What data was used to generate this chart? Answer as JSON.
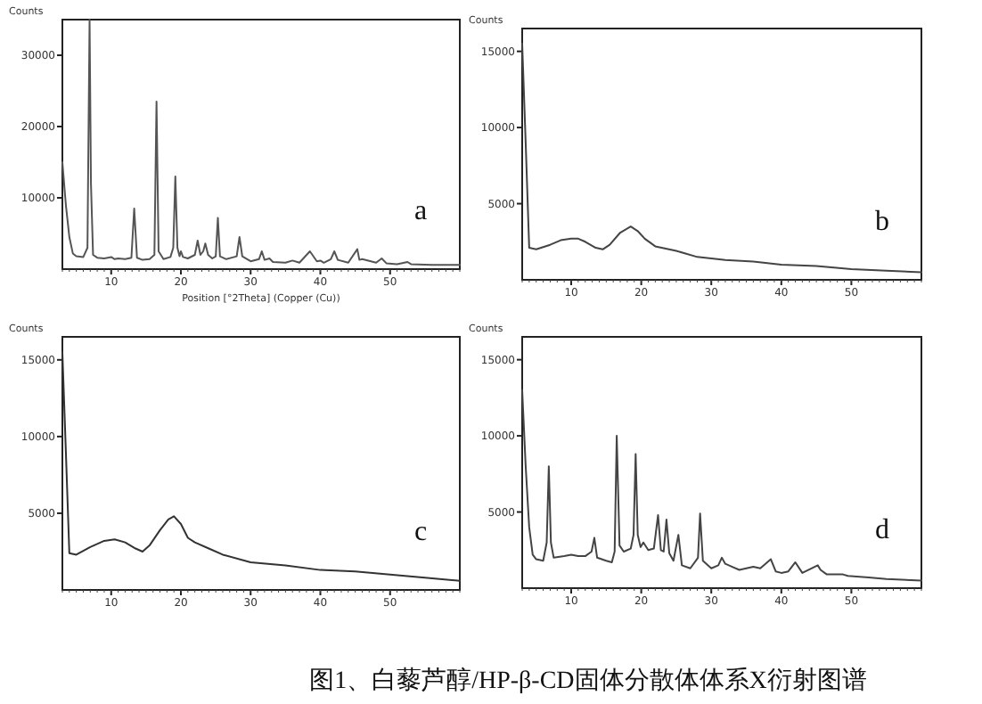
{
  "chart_data": [
    {
      "type": "line",
      "ylabel": "Counts",
      "xlabel": "Position [°2Theta] (Copper (Cu))",
      "xlim": [
        3,
        60
      ],
      "ylim": [
        0,
        35000
      ],
      "xticks": [
        10,
        20,
        30,
        40,
        50
      ],
      "yticks": [
        10000,
        20000,
        30000
      ],
      "grid": false,
      "marker": "none",
      "line_style": "solid",
      "annotations": [
        "a"
      ],
      "series": [
        {
          "color": "#555555",
          "x": [
            3,
            3.5,
            4,
            4.5,
            5,
            6,
            6.6,
            6.9,
            7.1,
            7.4,
            8,
            9,
            10,
            10.5,
            11,
            12,
            12.9,
            13.3,
            13.7,
            14.5,
            15.5,
            16.2,
            16.5,
            16.8,
            17.5,
            18.5,
            18.9,
            19.2,
            19.5,
            19.8,
            20,
            20.3,
            21,
            22,
            22.4,
            22.8,
            23.2,
            23.5,
            23.9,
            24.5,
            25,
            25.3,
            25.6,
            26.5,
            28,
            28.4,
            28.8,
            30,
            31.2,
            31.6,
            32,
            32.7,
            33.2,
            35,
            36,
            37,
            38.5,
            39.5,
            40,
            40.5,
            41.5,
            42,
            42.5,
            44,
            45.3,
            45.6,
            46,
            48,
            48.8,
            49.5,
            51,
            52.5,
            53,
            56,
            60
          ],
          "values": [
            15000,
            9000,
            4500,
            2200,
            1800,
            1700,
            3000,
            35000,
            12000,
            2000,
            1600,
            1500,
            1700,
            1400,
            1500,
            1400,
            1600,
            8500,
            1600,
            1300,
            1400,
            2000,
            23500,
            2500,
            1400,
            1700,
            3000,
            13000,
            3000,
            1800,
            2500,
            1700,
            1500,
            2000,
            4000,
            2000,
            2500,
            3600,
            2000,
            1500,
            1800,
            7200,
            1800,
            1400,
            1800,
            4500,
            1800,
            1100,
            1400,
            2500,
            1300,
            1500,
            1000,
            900,
            1200,
            900,
            2500,
            1100,
            1200,
            900,
            1400,
            2500,
            1300,
            900,
            2800,
            1300,
            1400,
            900,
            1500,
            800,
            700,
            1000,
            700,
            600,
            600
          ]
        }
      ]
    },
    {
      "type": "line",
      "ylabel": "Counts",
      "xlim": [
        3,
        60
      ],
      "ylim": [
        0,
        16500
      ],
      "xticks": [
        10,
        20,
        30,
        40,
        50
      ],
      "yticks": [
        5000,
        10000,
        15000
      ],
      "grid": false,
      "marker": "none",
      "line_style": "solid",
      "annotations": [
        "b"
      ],
      "series": [
        {
          "color": "#444444",
          "x": [
            3,
            3.5,
            4,
            5,
            7,
            8.5,
            10,
            11,
            12,
            13.5,
            14.5,
            15.5,
            17,
            18.5,
            19.5,
            20.5,
            22,
            25,
            28,
            32,
            36,
            40,
            45,
            50,
            55,
            60
          ],
          "values": [
            15500,
            9000,
            2100,
            2000,
            2300,
            2600,
            2700,
            2700,
            2500,
            2100,
            2000,
            2300,
            3100,
            3500,
            3200,
            2700,
            2200,
            1900,
            1500,
            1300,
            1200,
            1000,
            900,
            700,
            600,
            500
          ]
        }
      ]
    },
    {
      "type": "line",
      "ylabel": "Counts",
      "xlim": [
        3,
        60
      ],
      "ylim": [
        0,
        16500
      ],
      "xticks": [
        10,
        20,
        30,
        40,
        50
      ],
      "yticks": [
        5000,
        10000,
        15000
      ],
      "grid": false,
      "marker": "none",
      "line_style": "solid",
      "annotations": [
        "c"
      ],
      "series": [
        {
          "color": "#333333",
          "x": [
            3,
            3.5,
            4,
            5,
            7,
            9,
            10.5,
            12,
            13.5,
            14.5,
            15.5,
            17,
            18.2,
            19,
            20,
            21,
            22,
            24,
            26,
            30,
            35,
            40,
            45,
            50,
            55,
            60
          ],
          "values": [
            15500,
            9000,
            2400,
            2300,
            2800,
            3200,
            3300,
            3100,
            2700,
            2500,
            2900,
            3900,
            4600,
            4800,
            4300,
            3400,
            3100,
            2700,
            2300,
            1800,
            1600,
            1300,
            1200,
            1000,
            800,
            600
          ]
        }
      ]
    },
    {
      "type": "line",
      "ylabel": "Counts",
      "xlim": [
        3,
        60
      ],
      "ylim": [
        0,
        16500
      ],
      "xticks": [
        10,
        20,
        30,
        40,
        50
      ],
      "yticks": [
        5000,
        10000,
        15000
      ],
      "grid": false,
      "marker": "none",
      "line_style": "solid",
      "annotations": [
        "d",
        "图1、白藜芦醇/HP-β-CD固体分散体体系X衍射图谱"
      ],
      "series": [
        {
          "color": "#444444",
          "x": [
            3,
            3.5,
            4,
            4.5,
            5,
            6,
            6.5,
            6.8,
            7.1,
            7.5,
            9,
            10,
            11,
            12,
            12.9,
            13.3,
            13.7,
            15,
            15.8,
            16.2,
            16.5,
            16.9,
            17.5,
            18.5,
            18.9,
            19.2,
            19.5,
            19.9,
            20.3,
            21,
            21.8,
            22.4,
            22.8,
            23.2,
            23.6,
            24,
            24.6,
            25.3,
            25.8,
            27,
            28.1,
            28.4,
            28.8,
            30,
            31,
            31.5,
            32,
            33,
            34,
            36,
            37,
            38.5,
            39.2,
            40,
            41,
            42,
            43,
            45.2,
            45.6,
            46.5,
            48.8,
            49.5,
            52.5,
            55,
            60
          ],
          "values": [
            13000,
            8000,
            4000,
            2200,
            1900,
            1800,
            3000,
            8000,
            3000,
            2000,
            2100,
            2200,
            2100,
            2100,
            2400,
            3300,
            2000,
            1800,
            1700,
            2400,
            10000,
            2800,
            2400,
            2600,
            3500,
            8800,
            3500,
            2700,
            3000,
            2500,
            2600,
            4800,
            2500,
            2400,
            4500,
            2300,
            1800,
            3500,
            1500,
            1300,
            2000,
            4900,
            1800,
            1300,
            1500,
            2000,
            1600,
            1400,
            1200,
            1400,
            1300,
            1900,
            1100,
            1000,
            1100,
            1700,
            1000,
            1500,
            1200,
            900,
            900,
            800,
            700,
            600,
            500
          ]
        }
      ]
    }
  ]
}
